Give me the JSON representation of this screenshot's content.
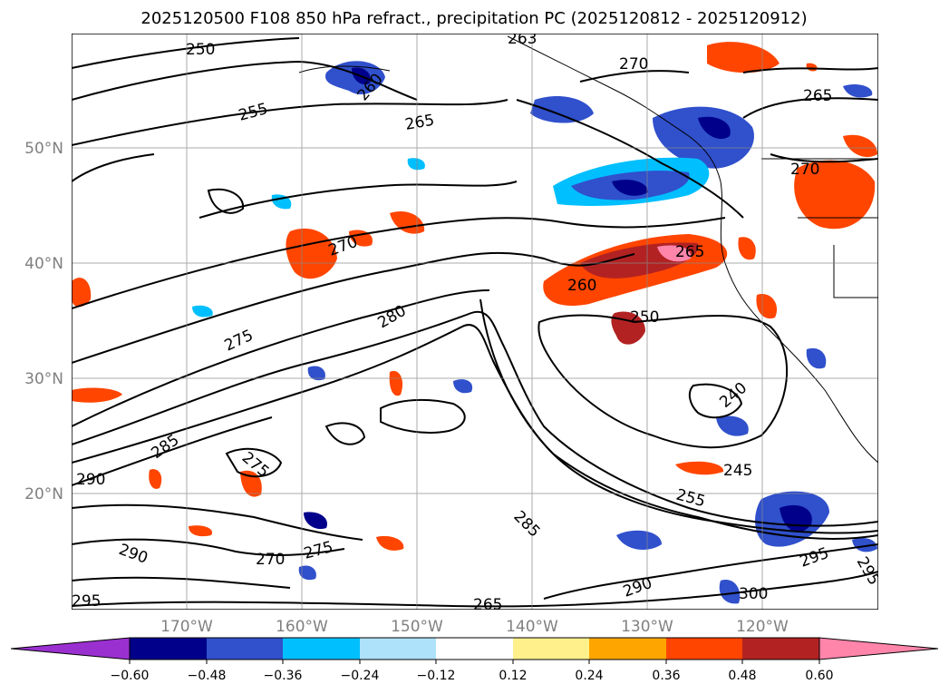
{
  "title": "2025120500 F108 850 hPa refract., precipitation PC (2025120812 - 2025120912)",
  "latitude_labels": [
    {
      "label": "50°N",
      "lat": 50
    },
    {
      "label": "40°N",
      "lat": 40
    },
    {
      "label": "30°N",
      "lat": 30
    },
    {
      "label": "20°N",
      "lat": 20
    }
  ],
  "longitude_labels": [
    {
      "label": "170°W",
      "lon": -170
    },
    {
      "label": "160°W",
      "lon": -160
    },
    {
      "label": "150°W",
      "lon": -150
    },
    {
      "label": "140°W",
      "lon": -140
    },
    {
      "label": "130°W",
      "lon": -130
    },
    {
      "label": "120°W",
      "lon": -120
    }
  ],
  "colorbar": {
    "ticks": [
      "−0.60",
      "−0.48",
      "−0.36",
      "−0.24",
      "−0.12",
      "0.12",
      "0.24",
      "0.36",
      "0.48",
      "0.60"
    ],
    "colors": [
      "#9b30d0",
      "#00008b",
      "#3050cc",
      "#00bfff",
      "#aee2fa",
      "#ffffff",
      "#fff08c",
      "#ffa500",
      "#ff4500",
      "#b22222",
      "#ff85ab"
    ]
  },
  "contour_labels": [
    "250",
    "255",
    "260",
    "265",
    "265",
    "265",
    "270",
    "270",
    "270",
    "275",
    "275",
    "275",
    "280",
    "285",
    "290",
    "290",
    "285",
    "260",
    "250",
    "240",
    "245",
    "255",
    "290",
    "300",
    "295",
    "295",
    "295",
    "265",
    "270",
    "263"
  ],
  "colors": {
    "contour": "#000000",
    "coastline": "#000000",
    "grid": "#888888"
  }
}
